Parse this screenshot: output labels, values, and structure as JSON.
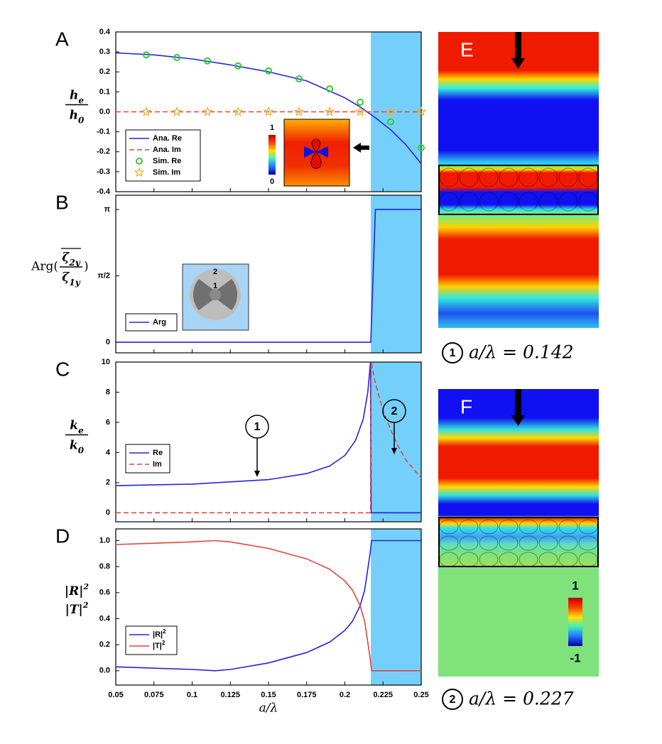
{
  "chart_data": [
    {
      "type": "line",
      "panel": "A",
      "ylabel": {
        "fraction": true,
        "num": [
          "h",
          "e"
        ],
        "den": [
          "h",
          "0"
        ]
      },
      "xlim": [
        0.05,
        0.25
      ],
      "xticks": [
        0.05,
        0.075,
        0.1,
        0.125,
        0.15,
        0.175,
        0.2,
        0.225,
        0.25
      ],
      "ylim": [
        -0.4,
        0.4
      ],
      "yticks": [
        -0.4,
        -0.3,
        -0.2,
        -0.1,
        {
          "value": 0,
          "label": "0.0"
        },
        0.1,
        0.2,
        0.3,
        0.4
      ],
      "shade": [
        0.217,
        0.25
      ],
      "legend": "lower left",
      "inset_colorbar": [
        1,
        0
      ],
      "series": [
        {
          "name": "Ana. Re",
          "color": "#2323e0",
          "style": "solid",
          "x": [
            0.05,
            0.075,
            0.1,
            0.125,
            0.15,
            0.175,
            0.2,
            0.21,
            0.22,
            0.23,
            0.24,
            0.25
          ],
          "values": [
            0.295,
            0.285,
            0.265,
            0.235,
            0.2,
            0.155,
            0.07,
            0.025,
            -0.03,
            -0.09,
            -0.165,
            -0.26
          ]
        },
        {
          "name": "Ana. Im",
          "color": "#e8413c",
          "style": "dashed",
          "x": [
            0.05,
            0.25
          ],
          "values": [
            0,
            0
          ]
        },
        {
          "name": "Sim. Re",
          "color": "#33cc33",
          "style": "circle",
          "x": [
            0.07,
            0.09,
            0.11,
            0.13,
            0.15,
            0.17,
            0.19,
            0.21,
            0.23,
            0.25
          ],
          "values": [
            0.285,
            0.272,
            0.255,
            0.23,
            0.205,
            0.165,
            0.115,
            0.048,
            -0.05,
            -0.18
          ]
        },
        {
          "name": "Sim. Im",
          "color": "#f0b030",
          "style": "star",
          "x": [
            0.07,
            0.09,
            0.11,
            0.13,
            0.15,
            0.17,
            0.19,
            0.21,
            0.23,
            0.25
          ],
          "values": [
            0,
            0,
            0,
            0,
            0,
            0,
            0,
            0,
            0,
            0
          ]
        }
      ]
    },
    {
      "type": "line",
      "panel": "B",
      "ylabel": {
        "fraction": true,
        "prefix": "Arg(",
        "num": [
          "ζ",
          "2y"
        ],
        "den": [
          "ζ",
          "1y"
        ],
        "suffix": ")"
      },
      "xlim": [
        0.05,
        0.25
      ],
      "xticks": [
        0.05,
        0.075,
        0.1,
        0.125,
        0.15,
        0.175,
        0.2,
        0.225,
        0.25
      ],
      "ylim": [
        -0.25,
        3.48
      ],
      "yticks": [
        0,
        {
          "value": 1.5708,
          "label": "π/2"
        },
        {
          "value": 3.1416,
          "label": "π"
        }
      ],
      "shade": [
        0.217,
        0.25
      ],
      "legend": "lower left",
      "inset_labels": [
        "2",
        "1"
      ],
      "series": [
        {
          "name": "Arg",
          "color": "#2323e0",
          "style": "solid",
          "x": [
            0.05,
            0.217,
            0.22,
            0.25
          ],
          "values": [
            0,
            0,
            3.1416,
            3.1416
          ]
        }
      ]
    },
    {
      "type": "line",
      "panel": "C",
      "ylabel": {
        "fraction": true,
        "num": [
          "k",
          "e"
        ],
        "den": [
          "k",
          "0"
        ]
      },
      "xlim": [
        0.05,
        0.25
      ],
      "xticks": [
        0.05,
        0.075,
        0.1,
        0.125,
        0.15,
        0.175,
        0.2,
        0.225,
        0.25
      ],
      "ylim": [
        -0.6,
        10
      ],
      "yticks": [
        0,
        2,
        4,
        6,
        8,
        10
      ],
      "shade": [
        0.217,
        0.25
      ],
      "legend": "lower left",
      "annotations": [
        "1",
        "2"
      ],
      "series": [
        {
          "name": "Re",
          "color": "#2323e0",
          "style": "solid",
          "x": [
            0.05,
            0.1,
            0.15,
            0.175,
            0.19,
            0.2,
            0.207,
            0.212,
            0.215,
            0.2168,
            0.2172,
            0.25
          ],
          "values": [
            1.8,
            1.9,
            2.2,
            2.6,
            3.1,
            3.8,
            4.8,
            6.2,
            8,
            10,
            0,
            0
          ]
        },
        {
          "name": "Im",
          "color": "#e8413c",
          "style": "dashed",
          "x": [
            0.05,
            0.2168,
            0.2172,
            0.22,
            0.225,
            0.23,
            0.235,
            0.24,
            0.25
          ],
          "values": [
            0,
            0,
            10,
            8.6,
            6.8,
            5.5,
            4.4,
            3.5,
            2.3
          ]
        }
      ]
    },
    {
      "type": "line",
      "panel": "D",
      "ylabel": {
        "fraction": false,
        "num": [
          "|R|",
          "2"
        ],
        "den": [
          "|T|",
          "2"
        ]
      },
      "xlabel": "a/λ",
      "xlim": [
        0.05,
        0.25
      ],
      "xticks": [
        0.05,
        0.075,
        0.1,
        0.125,
        0.15,
        0.175,
        0.2,
        0.225,
        0.25
      ],
      "ylim": [
        -0.11,
        1.09
      ],
      "yticks": [
        {
          "value": 0,
          "label": "0.0"
        },
        0.2,
        0.4,
        0.6,
        0.8,
        {
          "value": 1,
          "label": "1.0"
        }
      ],
      "shade": [
        0.217,
        0.25
      ],
      "legend": "lower left",
      "series": [
        {
          "name": "|R|2",
          "legend_parts": [
            "|R|",
            "2"
          ],
          "color": "#2323e0",
          "style": "solid",
          "x": [
            0.05,
            0.075,
            0.1,
            0.115,
            0.125,
            0.15,
            0.175,
            0.19,
            0.2,
            0.205,
            0.21,
            0.213,
            0.2165,
            0.2175,
            0.25
          ],
          "values": [
            0.03,
            0.02,
            0.01,
            0,
            0.01,
            0.06,
            0.14,
            0.22,
            0.31,
            0.38,
            0.5,
            0.62,
            0.9,
            1,
            1
          ]
        },
        {
          "name": "|T|2",
          "legend_parts": [
            "|T|",
            "2"
          ],
          "color": "#e8413c",
          "style": "solid",
          "x": [
            0.05,
            0.075,
            0.1,
            0.115,
            0.125,
            0.15,
            0.175,
            0.19,
            0.2,
            0.205,
            0.21,
            0.213,
            0.2165,
            0.2175,
            0.25
          ],
          "values": [
            0.97,
            0.98,
            0.99,
            1,
            0.99,
            0.94,
            0.86,
            0.78,
            0.69,
            0.62,
            0.5,
            0.38,
            0.1,
            0,
            0
          ]
        }
      ]
    }
  ],
  "field_panels": [
    {
      "label": "E",
      "marker": "1",
      "caption": "a/λ = 0.142"
    },
    {
      "label": "F",
      "marker": "2",
      "caption": "a/λ = 0.227",
      "colorbar": [
        1,
        -1
      ]
    }
  ]
}
